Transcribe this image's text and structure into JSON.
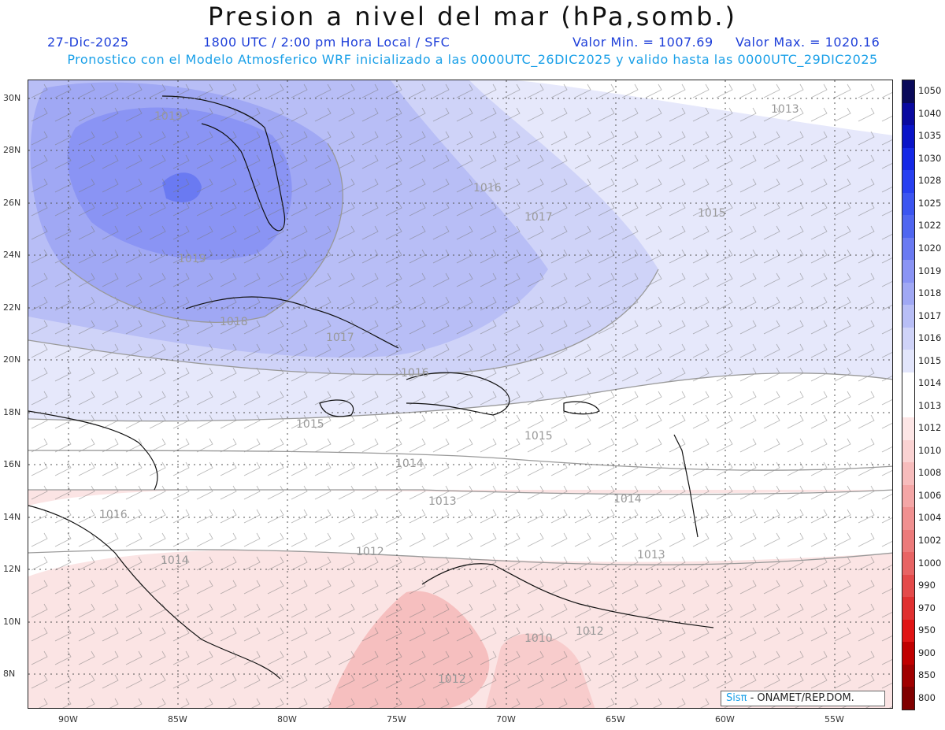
{
  "title": "Presion a nivel del mar (hPa,somb.)",
  "date": "27-Dic-2025",
  "time_label": "1800 UTC / 2:00 pm Hora Local / SFC",
  "min_label": "Valor Min. = 1007.69",
  "max_label": "Valor Max. = 1020.16",
  "description": "Pronostico con el Modelo Atmosferico WRF inicializado a las 0000UTC_26DIC2025 y valido hasta las  0000UTC_29DIC2025",
  "credit_logo": "Sisπ",
  "credit_org": "- ONAMET/REP.DOM.",
  "lat_labels": [
    "30N",
    "28N",
    "26N",
    "24N",
    "22N",
    "20N",
    "18N",
    "16N",
    "14N",
    "12N",
    "10N",
    "8N"
  ],
  "lon_labels": [
    "90W",
    "85W",
    "80W",
    "75W",
    "70W",
    "65W",
    "60W",
    "55W"
  ],
  "colorbar": {
    "levels": [
      "1050",
      "1040",
      "1035",
      "1030",
      "1028",
      "1025",
      "1022",
      "1020",
      "1019",
      "1018",
      "1017",
      "1016",
      "1015",
      "1014",
      "1013",
      "1012",
      "1010",
      "1008",
      "1006",
      "1004",
      "1002",
      "1000",
      "990",
      "970",
      "950",
      "900",
      "850",
      "800"
    ],
    "colors": [
      "#0a0a5a",
      "#0a0aa0",
      "#0a14c8",
      "#1428e6",
      "#2840f0",
      "#3c55f0",
      "#5066f0",
      "#6a7af2",
      "#8a94f4",
      "#a0a8f4",
      "#b8bef6",
      "#cfd3f8",
      "#e2e5fb",
      "#ffffff",
      "#ffffff",
      "#fde6e6",
      "#fad2d2",
      "#f7bcbc",
      "#f4a6a6",
      "#f09090",
      "#ec7a7a",
      "#e86464",
      "#e44a4a",
      "#e03030",
      "#e01414",
      "#c00000",
      "#a00000",
      "#800000"
    ]
  },
  "contour_labels": [
    "1013",
    "1016",
    "1017",
    "1015",
    "1019",
    "1019",
    "1018",
    "1017",
    "1016",
    "1015",
    "1015",
    "1014",
    "1014",
    "1013",
    "1016",
    "1014",
    "1012",
    "1013",
    "1012",
    "1010",
    "1012"
  ]
}
